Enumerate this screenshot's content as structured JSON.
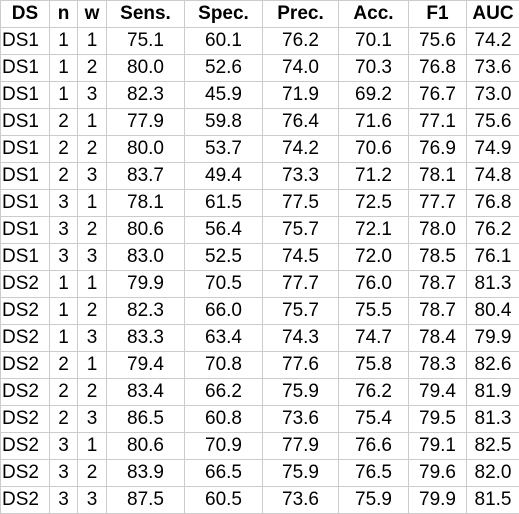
{
  "table": {
    "headers": [
      "DS",
      "n",
      "w",
      "Sens.",
      "Spec.",
      "Prec.",
      "Acc.",
      "F1",
      "AUC"
    ],
    "rows": [
      [
        "DS1",
        "1",
        "1",
        "75.1",
        "60.1",
        "76.2",
        "70.1",
        "75.6",
        "74.2"
      ],
      [
        "DS1",
        "1",
        "2",
        "80.0",
        "52.6",
        "74.0",
        "70.3",
        "76.8",
        "73.6"
      ],
      [
        "DS1",
        "1",
        "3",
        "82.3",
        "45.9",
        "71.9",
        "69.2",
        "76.7",
        "73.0"
      ],
      [
        "DS1",
        "2",
        "1",
        "77.9",
        "59.8",
        "76.4",
        "71.6",
        "77.1",
        "75.6"
      ],
      [
        "DS1",
        "2",
        "2",
        "80.0",
        "53.7",
        "74.2",
        "70.6",
        "76.9",
        "74.9"
      ],
      [
        "DS1",
        "2",
        "3",
        "83.7",
        "49.4",
        "73.3",
        "71.2",
        "78.1",
        "74.8"
      ],
      [
        "DS1",
        "3",
        "1",
        "78.1",
        "61.5",
        "77.5",
        "72.5",
        "77.7",
        "76.8"
      ],
      [
        "DS1",
        "3",
        "2",
        "80.6",
        "56.4",
        "75.7",
        "72.1",
        "78.0",
        "76.2"
      ],
      [
        "DS1",
        "3",
        "3",
        "83.0",
        "52.5",
        "74.5",
        "72.0",
        "78.5",
        "76.1"
      ],
      [
        "DS2",
        "1",
        "1",
        "79.9",
        "70.5",
        "77.7",
        "76.0",
        "78.7",
        "81.3"
      ],
      [
        "DS2",
        "1",
        "2",
        "82.3",
        "66.0",
        "75.7",
        "75.5",
        "78.7",
        "80.4"
      ],
      [
        "DS2",
        "1",
        "3",
        "83.3",
        "63.4",
        "74.3",
        "74.7",
        "78.4",
        "79.9"
      ],
      [
        "DS2",
        "2",
        "1",
        "79.4",
        "70.8",
        "77.6",
        "75.8",
        "78.3",
        "82.6"
      ],
      [
        "DS2",
        "2",
        "2",
        "83.4",
        "66.2",
        "75.9",
        "76.2",
        "79.4",
        "81.9"
      ],
      [
        "DS2",
        "2",
        "3",
        "86.5",
        "60.8",
        "73.6",
        "75.4",
        "79.5",
        "81.3"
      ],
      [
        "DS2",
        "3",
        "1",
        "80.6",
        "70.9",
        "77.9",
        "76.6",
        "79.1",
        "82.5"
      ],
      [
        "DS2",
        "3",
        "2",
        "83.9",
        "66.5",
        "75.9",
        "76.5",
        "79.6",
        "82.0"
      ],
      [
        "DS2",
        "3",
        "3",
        "87.5",
        "60.5",
        "73.6",
        "75.9",
        "79.9",
        "81.5"
      ]
    ]
  }
}
